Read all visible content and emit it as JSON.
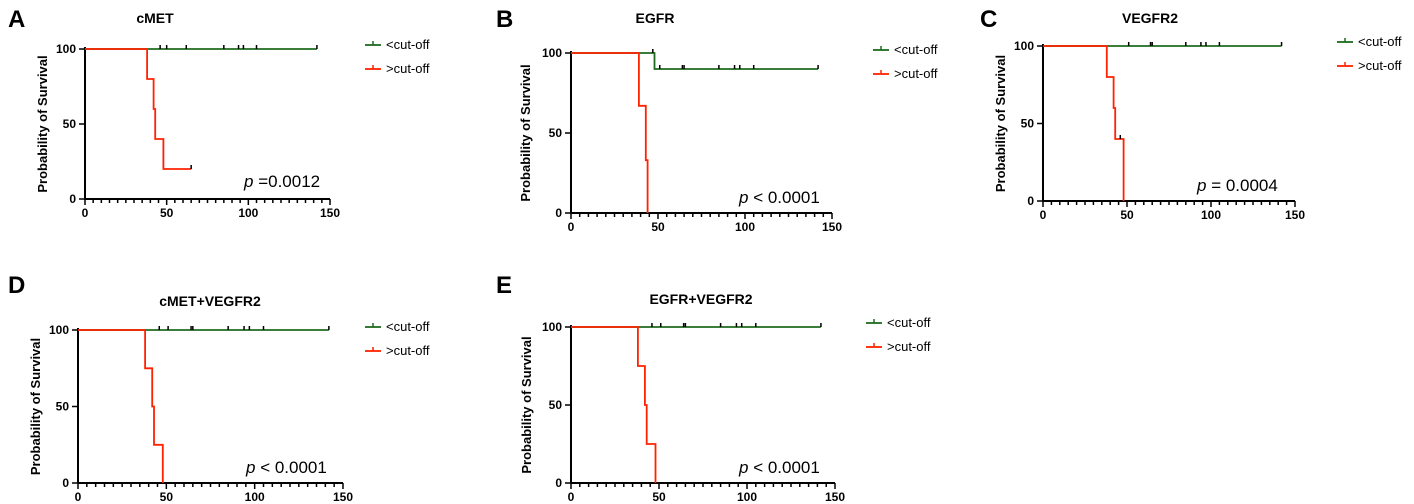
{
  "colors": {
    "below": "#1e6b1e",
    "above": "#ff2200",
    "axis": "#000000"
  },
  "chart_data": [
    {
      "type": "line",
      "panel": "A",
      "title": "cMET",
      "ylabel": "Probability of Survival",
      "xlim": [
        0,
        150
      ],
      "ylim": [
        0,
        100
      ],
      "xticks": [
        0,
        50,
        100,
        150
      ],
      "yticks": [
        0,
        50,
        100
      ],
      "pvalue_prefix": "p",
      "pvalue_text": " =0.0012",
      "series": [
        {
          "name": "<cut-off",
          "color": "#1e6b1e",
          "steps": [
            [
              0,
              100
            ],
            [
              142,
              100
            ]
          ],
          "censored": [
            [
              46,
              100
            ],
            [
              50,
              100
            ],
            [
              62,
              100
            ],
            [
              85,
              100
            ],
            [
              94,
              100
            ],
            [
              97,
              100
            ],
            [
              105,
              100
            ],
            [
              142,
              100
            ]
          ]
        },
        {
          "name": ">cut-off",
          "color": "#ff2200",
          "steps": [
            [
              0,
              100
            ],
            [
              38,
              100
            ],
            [
              38,
              80
            ],
            [
              42,
              80
            ],
            [
              42,
              60
            ],
            [
              43,
              60
            ],
            [
              43,
              40
            ],
            [
              48,
              40
            ],
            [
              48,
              20
            ],
            [
              65,
              20
            ]
          ],
          "censored": [
            [
              65,
              20
            ]
          ]
        }
      ]
    },
    {
      "type": "line",
      "panel": "B",
      "title": "EGFR",
      "ylabel": "Probability of Survival",
      "xlim": [
        0,
        150
      ],
      "ylim": [
        0,
        100
      ],
      "xticks": [
        0,
        50,
        100,
        150
      ],
      "yticks": [
        0,
        50,
        100
      ],
      "pvalue_prefix": "p",
      "pvalue_text": " < 0.0001",
      "series": [
        {
          "name": "<cut-off",
          "color": "#1e6b1e",
          "steps": [
            [
              0,
              100
            ],
            [
              48,
              100
            ],
            [
              48,
              90
            ],
            [
              142,
              90
            ]
          ],
          "censored": [
            [
              47,
              100
            ],
            [
              51,
              90
            ],
            [
              64,
              90
            ],
            [
              65,
              90
            ],
            [
              85,
              90
            ],
            [
              94,
              90
            ],
            [
              97,
              90
            ],
            [
              105,
              90
            ],
            [
              142,
              90
            ]
          ]
        },
        {
          "name": ">cut-off",
          "color": "#ff2200",
          "steps": [
            [
              0,
              100
            ],
            [
              39,
              100
            ],
            [
              39,
              67
            ],
            [
              43,
              67
            ],
            [
              43,
              33
            ],
            [
              44,
              33
            ],
            [
              44,
              0
            ]
          ],
          "censored": []
        }
      ]
    },
    {
      "type": "line",
      "panel": "C",
      "title": "VEGFR2",
      "ylabel": "Probability of Survival",
      "xlim": [
        0,
        150
      ],
      "ylim": [
        0,
        100
      ],
      "xticks": [
        0,
        50,
        100,
        150
      ],
      "yticks": [
        0,
        50,
        100
      ],
      "pvalue_prefix": "p",
      "pvalue_text": " = 0.0004",
      "series": [
        {
          "name": "<cut-off",
          "color": "#1e6b1e",
          "steps": [
            [
              0,
              100
            ],
            [
              142,
              100
            ]
          ],
          "censored": [
            [
              51,
              100
            ],
            [
              64,
              100
            ],
            [
              65,
              100
            ],
            [
              85,
              100
            ],
            [
              94,
              100
            ],
            [
              97,
              100
            ],
            [
              105,
              100
            ],
            [
              142,
              100
            ]
          ]
        },
        {
          "name": ">cut-off",
          "color": "#ff2200",
          "steps": [
            [
              0,
              100
            ],
            [
              38,
              100
            ],
            [
              38,
              80
            ],
            [
              42,
              80
            ],
            [
              42,
              60
            ],
            [
              43,
              60
            ],
            [
              43,
              40
            ],
            [
              48,
              40
            ],
            [
              48,
              0
            ]
          ],
          "censored": [
            [
              46,
              40
            ]
          ]
        }
      ]
    },
    {
      "type": "line",
      "panel": "D",
      "title": "cMET+VEGFR2",
      "ylabel": "Probability of Survival",
      "xlim": [
        0,
        150
      ],
      "ylim": [
        0,
        100
      ],
      "xticks": [
        0,
        50,
        100,
        150
      ],
      "yticks": [
        0,
        50,
        100
      ],
      "pvalue_prefix": "p",
      "pvalue_text": " < 0.0001",
      "series": [
        {
          "name": "<cut-off",
          "color": "#1e6b1e",
          "steps": [
            [
              0,
              100
            ],
            [
              142,
              100
            ]
          ],
          "censored": [
            [
              46,
              100
            ],
            [
              51,
              100
            ],
            [
              64,
              100
            ],
            [
              65,
              100
            ],
            [
              85,
              100
            ],
            [
              94,
              100
            ],
            [
              97,
              100
            ],
            [
              105,
              100
            ],
            [
              142,
              100
            ]
          ]
        },
        {
          "name": ">cut-off",
          "color": "#ff2200",
          "steps": [
            [
              0,
              100
            ],
            [
              38,
              100
            ],
            [
              38,
              75
            ],
            [
              42,
              75
            ],
            [
              42,
              50
            ],
            [
              43,
              50
            ],
            [
              43,
              25
            ],
            [
              48,
              25
            ],
            [
              48,
              0
            ]
          ],
          "censored": []
        }
      ]
    },
    {
      "type": "line",
      "panel": "E",
      "title": "EGFR+VEGFR2",
      "ylabel": "Probability of Survival",
      "xlim": [
        0,
        150
      ],
      "ylim": [
        0,
        100
      ],
      "xticks": [
        0,
        50,
        100,
        150
      ],
      "yticks": [
        0,
        50,
        100
      ],
      "pvalue_prefix": "p",
      "pvalue_text": " < 0.0001",
      "series": [
        {
          "name": "<cut-off",
          "color": "#1e6b1e",
          "steps": [
            [
              0,
              100
            ],
            [
              142,
              100
            ]
          ],
          "censored": [
            [
              46,
              100
            ],
            [
              51,
              100
            ],
            [
              64,
              100
            ],
            [
              65,
              100
            ],
            [
              85,
              100
            ],
            [
              94,
              100
            ],
            [
              97,
              100
            ],
            [
              105,
              100
            ],
            [
              142,
              100
            ]
          ]
        },
        {
          "name": ">cut-off",
          "color": "#ff2200",
          "steps": [
            [
              0,
              100
            ],
            [
              38,
              100
            ],
            [
              38,
              75
            ],
            [
              42,
              75
            ],
            [
              42,
              50
            ],
            [
              43,
              50
            ],
            [
              43,
              25
            ],
            [
              48,
              25
            ],
            [
              48,
              0
            ]
          ],
          "censored": []
        }
      ]
    }
  ]
}
